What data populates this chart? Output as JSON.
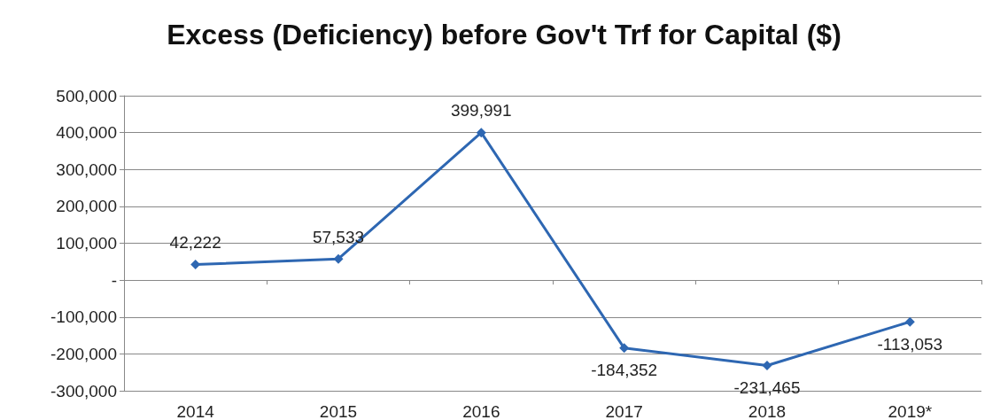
{
  "chart_data": {
    "type": "line",
    "title": "Excess (Deficiency) before Gov't Trf for Capital ($)",
    "categories": [
      "2014",
      "2015",
      "2016",
      "2017",
      "2018",
      "2019*"
    ],
    "values": [
      42222,
      57533,
      399991,
      -184352,
      -231465,
      -113053
    ],
    "value_labels": [
      "42,222",
      "57,533",
      "399,991",
      "-184,352",
      "-231,465",
      "-113,053"
    ],
    "color": "#2e67b2",
    "marker": "diamond",
    "grid": "y",
    "ylim": [
      -300000,
      500000
    ],
    "yticks": [
      {
        "value": -300000,
        "label": "-300,000"
      },
      {
        "value": -200000,
        "label": "-200,000"
      },
      {
        "value": -100000,
        "label": "-100,000"
      },
      {
        "value": 0,
        "label": "-"
      },
      {
        "value": 100000,
        "label": "100,000"
      },
      {
        "value": 200000,
        "label": "200,000"
      },
      {
        "value": 300000,
        "label": "300,000"
      },
      {
        "value": 400000,
        "label": "400,000"
      },
      {
        "value": 500000,
        "label": "500,000"
      }
    ]
  }
}
